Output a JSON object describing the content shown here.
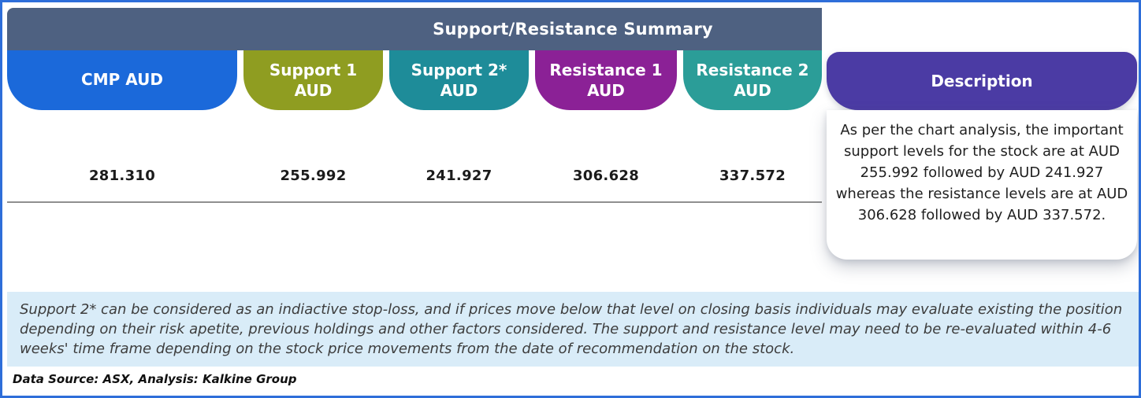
{
  "colors": {
    "border": "#2e6ed9",
    "header_bar": "#4e6181",
    "cmp": "#1b69da",
    "support1": "#8f9d21",
    "support2": "#1e8c99",
    "resistance1": "#8b2196",
    "resistance2": "#2b9d98",
    "description": "#4b3ba4",
    "note_bg": "#d9ecf8"
  },
  "header": {
    "title": "Support/Resistance Summary"
  },
  "columns": [
    {
      "name": "cmp",
      "line1": "CMP AUD",
      "line2": "",
      "value": "281.310"
    },
    {
      "name": "support1",
      "line1": "Support 1",
      "line2": "AUD",
      "value": "255.992"
    },
    {
      "name": "support2",
      "line1": "Support 2*",
      "line2": "AUD",
      "value": "241.927"
    },
    {
      "name": "resistance1",
      "line1": "Resistance 1",
      "line2": "AUD",
      "value": "306.628"
    },
    {
      "name": "resistance2",
      "line1": "Resistance 2",
      "line2": "AUD",
      "value": "337.572"
    }
  ],
  "description": {
    "label": "Description",
    "text": "As per the chart analysis, the important support levels for the stock are at AUD 255.992 followed by AUD 241.927 whereas the resistance levels are at AUD 306.628 followed by AUD 337.572."
  },
  "note": {
    "text": "Support 2* can be considered as an indiactive stop-loss, and if prices move below that level on closing basis individuals may evaluate existing the position depending on their risk apetite, previous holdings and other factors considered. The support and resistance level may need to be re-evaluated within 4-6 weeks' time frame depending on the stock price movements from the date of recommendation on the stock."
  },
  "footer": {
    "text": "Data Source: ASX, Analysis: Kalkine Group"
  }
}
